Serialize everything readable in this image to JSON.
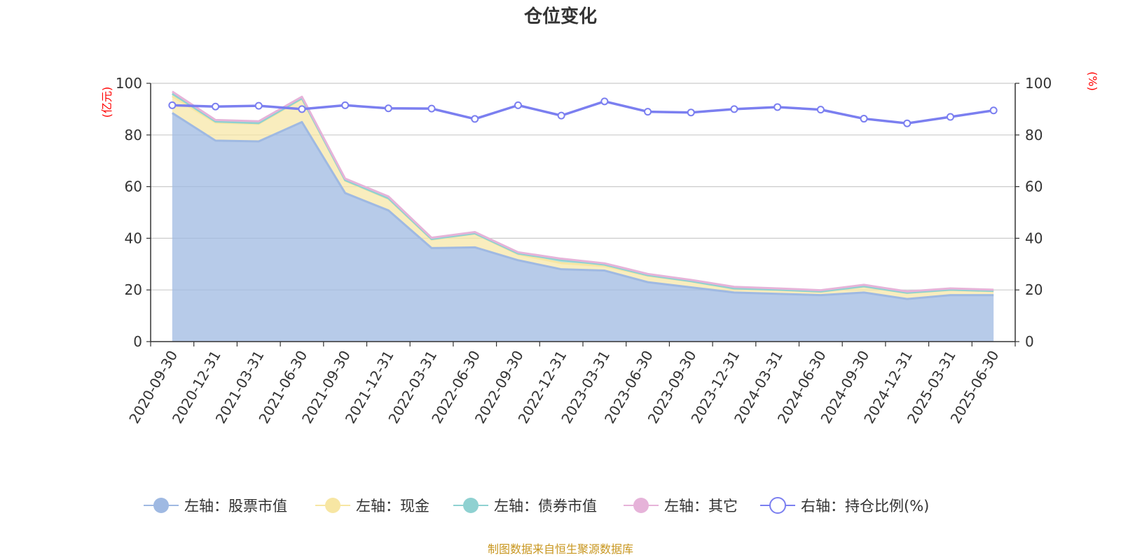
{
  "chart_data": {
    "type": "area",
    "title": "仓位变化",
    "categories": [
      "2020-09-30",
      "2020-12-31",
      "2021-03-31",
      "2021-06-30",
      "2021-09-30",
      "2021-12-31",
      "2022-03-31",
      "2022-06-30",
      "2022-09-30",
      "2022-12-31",
      "2023-03-31",
      "2023-06-30",
      "2023-09-30",
      "2023-12-31",
      "2024-03-31",
      "2024-06-30",
      "2024-09-30",
      "2024-12-31",
      "2025-03-31",
      "2025-06-30"
    ],
    "left_axis": {
      "unit": "(亿元)",
      "ylim": [
        0,
        100
      ],
      "ticks": [
        "0",
        "20",
        "40",
        "60",
        "80",
        "100"
      ]
    },
    "right_axis": {
      "unit": "(%)",
      "ylim": [
        0,
        100
      ],
      "ticks": [
        "0",
        "20",
        "40",
        "60",
        "80",
        "100"
      ]
    },
    "stacked_series": [
      {
        "name": "左轴：股票市值",
        "color": "#9fb9e2",
        "values": [
          88.5,
          77.8,
          77.5,
          85.0,
          57.5,
          50.8,
          36.2,
          36.5,
          31.5,
          28.0,
          27.5,
          23.0,
          21.0,
          19.0,
          18.5,
          18.0,
          19.0,
          16.5,
          18.0,
          18.0
        ]
      },
      {
        "name": "左轴：现金",
        "color": "#f7e6a3",
        "values": [
          6.5,
          7.0,
          6.8,
          9.0,
          4.8,
          4.5,
          3.3,
          5.3,
          2.3,
          2.4,
          1.8,
          2.5,
          2.3,
          1.5,
          1.5,
          1.3,
          2.3,
          2.3,
          2.0,
          1.5
        ]
      },
      {
        "name": "左轴：债券市值",
        "color": "#8fd1d1",
        "values": [
          1.0,
          0.4,
          0.3,
          0.2,
          0.2,
          0.2,
          0.2,
          0.1,
          0.3,
          1.2,
          0.5,
          0.2,
          0.1,
          0.1,
          0.1,
          0.1,
          0.1,
          0.1,
          0.1,
          0.1
        ]
      },
      {
        "name": "左轴：其它",
        "color": "#e6b3d9",
        "values": [
          0.8,
          0.6,
          0.7,
          0.6,
          0.6,
          0.7,
          0.5,
          0.5,
          0.5,
          0.5,
          0.5,
          0.5,
          0.5,
          0.6,
          0.5,
          0.5,
          0.6,
          0.5,
          0.5,
          0.5
        ]
      }
    ],
    "line_series": {
      "name": "右轴：持仓比例(%)",
      "color": "#7b7ff0",
      "values": [
        91.5,
        91.0,
        91.3,
        90.0,
        91.5,
        90.3,
        90.2,
        86.2,
        91.5,
        87.5,
        93.0,
        89.0,
        88.7,
        90.0,
        90.8,
        89.8,
        86.3,
        84.5,
        87.0,
        89.5
      ]
    },
    "legend_position": "bottom",
    "grid": true
  },
  "footer": {
    "source": "制图数据来自恒生聚源数据库"
  }
}
